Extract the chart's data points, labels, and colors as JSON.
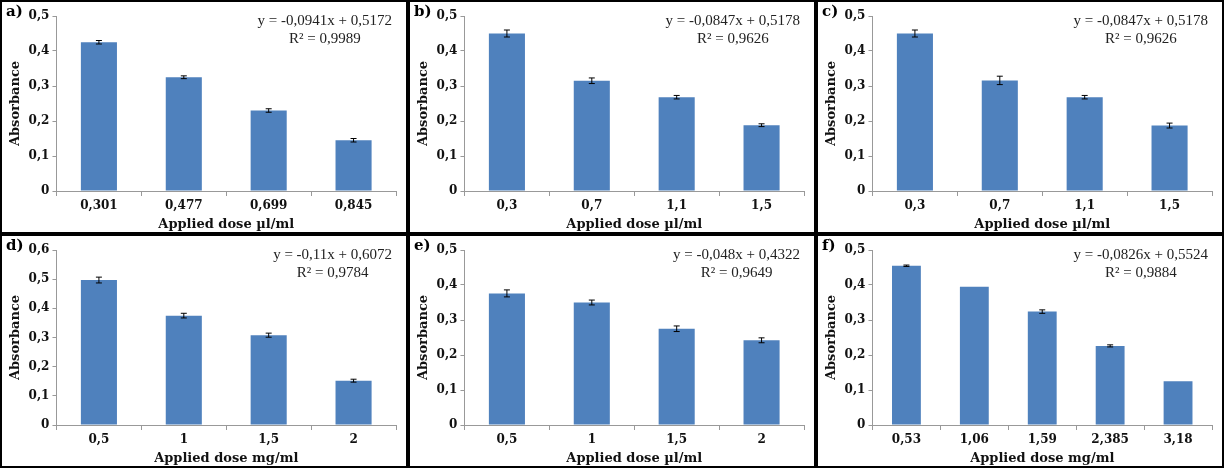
{
  "chart_data": [
    {
      "type": "bar",
      "title": "a)",
      "xlabel": "Applied dose µl/ml",
      "ylabel": "Absorbance",
      "categories": [
        "0,301",
        "0,477",
        "0,699",
        "0,845"
      ],
      "values": [
        0.425,
        0.325,
        0.23,
        0.145
      ],
      "errors": [
        0.005,
        0.004,
        0.005,
        0.005
      ],
      "color": "#4f81bd",
      "ylim": [
        0,
        0.5
      ],
      "yticks": [
        {
          "value": 0,
          "label": "0"
        },
        {
          "value": 0.1,
          "label": "0,1"
        },
        {
          "value": 0.2,
          "label": "0,2"
        },
        {
          "value": 0.3,
          "label": "0,3"
        },
        {
          "value": 0.4,
          "label": "0,4"
        },
        {
          "value": 0.5,
          "label": "0,5"
        }
      ],
      "annotations": [
        "y = -0,0941x + 0,5172",
        "R² = 0,9989"
      ],
      "grid": false,
      "legend": false
    },
    {
      "type": "bar",
      "title": "b)",
      "xlabel": "Applied dose µl/ml",
      "ylabel": "Absorbance",
      "categories": [
        "0,3",
        "0,7",
        "1,1",
        "1,5"
      ],
      "values": [
        0.45,
        0.315,
        0.268,
        0.188
      ],
      "errors": [
        0.01,
        0.008,
        0.005,
        0.004
      ],
      "color": "#4f81bd",
      "ylim": [
        0,
        0.5
      ],
      "yticks": [
        {
          "value": 0,
          "label": "0"
        },
        {
          "value": 0.1,
          "label": "0,1"
        },
        {
          "value": 0.2,
          "label": "0,2"
        },
        {
          "value": 0.3,
          "label": "0,3"
        },
        {
          "value": 0.4,
          "label": "0,4"
        },
        {
          "value": 0.5,
          "label": "0,5"
        }
      ],
      "annotations": [
        "y = -0,0847x + 0,5178",
        "R² = 0,9626"
      ],
      "grid": false,
      "legend": false
    },
    {
      "type": "bar",
      "title": "c)",
      "xlabel": "Applied dose µl/ml",
      "ylabel": "Absorbance",
      "categories": [
        "0,3",
        "0,7",
        "1,1",
        "1,5"
      ],
      "values": [
        0.45,
        0.316,
        0.268,
        0.187
      ],
      "errors": [
        0.01,
        0.012,
        0.005,
        0.007
      ],
      "color": "#4f81bd",
      "ylim": [
        0,
        0.5
      ],
      "yticks": [
        {
          "value": 0,
          "label": "0"
        },
        {
          "value": 0.1,
          "label": "0,1"
        },
        {
          "value": 0.2,
          "label": "0,2"
        },
        {
          "value": 0.3,
          "label": "0,3"
        },
        {
          "value": 0.4,
          "label": "0,4"
        },
        {
          "value": 0.5,
          "label": "0,5"
        }
      ],
      "annotations": [
        "y = -0,0847x + 0,5178",
        "R² = 0,9626"
      ],
      "grid": false,
      "legend": false
    },
    {
      "type": "bar",
      "title": "d)",
      "xlabel": "Applied dose mg/ml",
      "ylabel": "Absorbance",
      "categories": [
        "0,5",
        "1",
        "1,5",
        "2"
      ],
      "values": [
        0.497,
        0.375,
        0.308,
        0.152
      ],
      "errors": [
        0.01,
        0.008,
        0.007,
        0.005
      ],
      "color": "#4f81bd",
      "ylim": [
        0,
        0.6
      ],
      "yticks": [
        {
          "value": 0,
          "label": "0"
        },
        {
          "value": 0.1,
          "label": "0,1"
        },
        {
          "value": 0.2,
          "label": "0,2"
        },
        {
          "value": 0.3,
          "label": "0,3"
        },
        {
          "value": 0.4,
          "label": "0,4"
        },
        {
          "value": 0.5,
          "label": "0,5"
        },
        {
          "value": 0.6,
          "label": "0,6"
        }
      ],
      "annotations": [
        "y = -0,11x + 0,6072",
        "R² = 0,9784"
      ],
      "grid": false,
      "legend": false
    },
    {
      "type": "bar",
      "title": "e)",
      "xlabel": "Applied dose µl/ml",
      "ylabel": "Absorbance",
      "categories": [
        "0,5",
        "1",
        "1,5",
        "2"
      ],
      "values": [
        0.376,
        0.35,
        0.275,
        0.242
      ],
      "errors": [
        0.01,
        0.007,
        0.008,
        0.007
      ],
      "color": "#4f81bd",
      "ylim": [
        0,
        0.5
      ],
      "yticks": [
        {
          "value": 0,
          "label": "0"
        },
        {
          "value": 0.1,
          "label": "0,1"
        },
        {
          "value": 0.2,
          "label": "0,2"
        },
        {
          "value": 0.3,
          "label": "0,3"
        },
        {
          "value": 0.4,
          "label": "0,4"
        },
        {
          "value": 0.5,
          "label": "0,5"
        }
      ],
      "annotations": [
        "y = -0,048x + 0,4322",
        "R² = 0,9649"
      ],
      "grid": false,
      "legend": false
    },
    {
      "type": "bar",
      "title": "f)",
      "xlabel": "Applied dose mg/ml",
      "ylabel": "Absorbance",
      "categories": [
        "0,53",
        "1,06",
        "1,59",
        "2,385",
        "3,18"
      ],
      "values": [
        0.455,
        0.395,
        0.324,
        0.226,
        0.125
      ],
      "errors": [
        0.002,
        null,
        0.005,
        0.003,
        null
      ],
      "color": "#4f81bd",
      "ylim": [
        0,
        0.5
      ],
      "yticks": [
        {
          "value": 0,
          "label": "0"
        },
        {
          "value": 0.1,
          "label": "0,1"
        },
        {
          "value": 0.2,
          "label": "0,2"
        },
        {
          "value": 0.3,
          "label": "0,3"
        },
        {
          "value": 0.4,
          "label": "0,4"
        },
        {
          "value": 0.5,
          "label": "0,5"
        }
      ],
      "annotations": [
        "y = -0,0826x + 0,5524",
        "R² = 0,9884"
      ],
      "grid": false,
      "legend": false
    }
  ]
}
